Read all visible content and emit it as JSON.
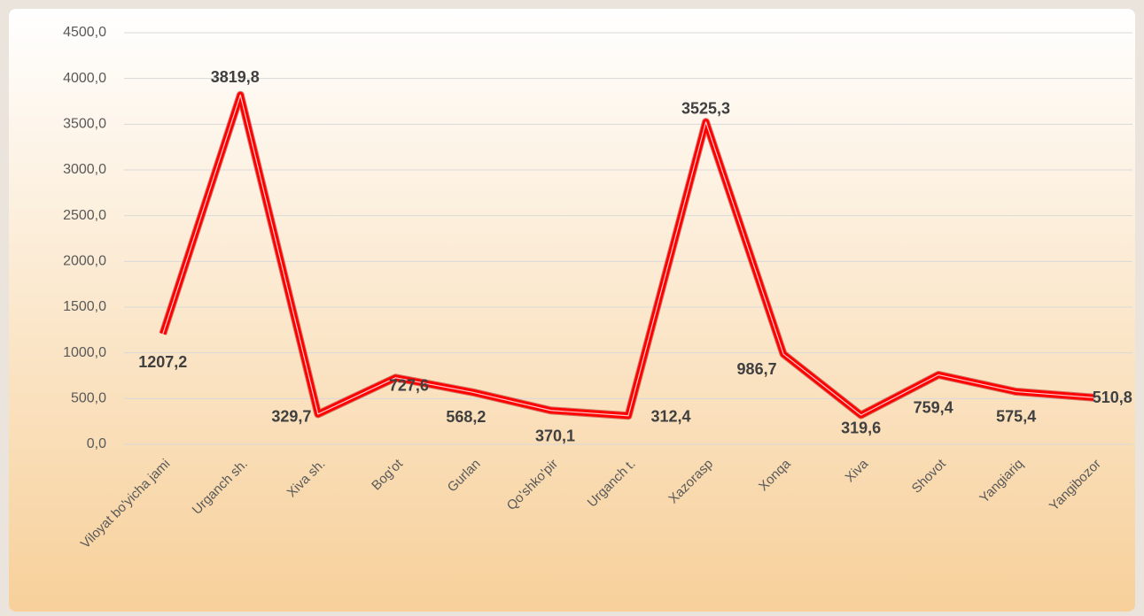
{
  "chart_data": {
    "type": "line",
    "categories": [
      "Viloyat bo'yicha jami",
      "Urganch sh.",
      "Xiva sh.",
      "Bog'ot",
      "Gurlan",
      "Qo'shko'pir",
      "Urganch t.",
      "Xazorasp",
      "Xonqa",
      "Xiva",
      "Shovot",
      "Yangiariq",
      "Yangibozor"
    ],
    "values": [
      1207.2,
      3819.8,
      329.7,
      727.6,
      568.2,
      370.1,
      312.4,
      3525.3,
      986.7,
      319.6,
      759.4,
      575.4,
      510.8
    ],
    "value_labels": [
      "1207,2",
      "3819,8",
      "329,7",
      "727,6",
      "568,2",
      "370,1",
      "312,4",
      "3525,3",
      "986,7",
      "319,6",
      "759,4",
      "575,4",
      "510,8"
    ],
    "color": "#ff0000",
    "ylim": [
      0,
      4500
    ],
    "yticks": [
      {
        "value": 0,
        "label": "0,0"
      },
      {
        "value": 500,
        "label": "500,0"
      },
      {
        "value": 1000,
        "label": "1000,0"
      },
      {
        "value": 1500,
        "label": "1500,0"
      },
      {
        "value": 2000,
        "label": "2000,0"
      },
      {
        "value": 2500,
        "label": "2500,0"
      },
      {
        "value": 3000,
        "label": "3000,0"
      },
      {
        "value": 3500,
        "label": "3500,0"
      },
      {
        "value": 4000,
        "label": "4000,0"
      },
      {
        "value": 4500,
        "label": "4500,0"
      }
    ],
    "grid": true
  }
}
